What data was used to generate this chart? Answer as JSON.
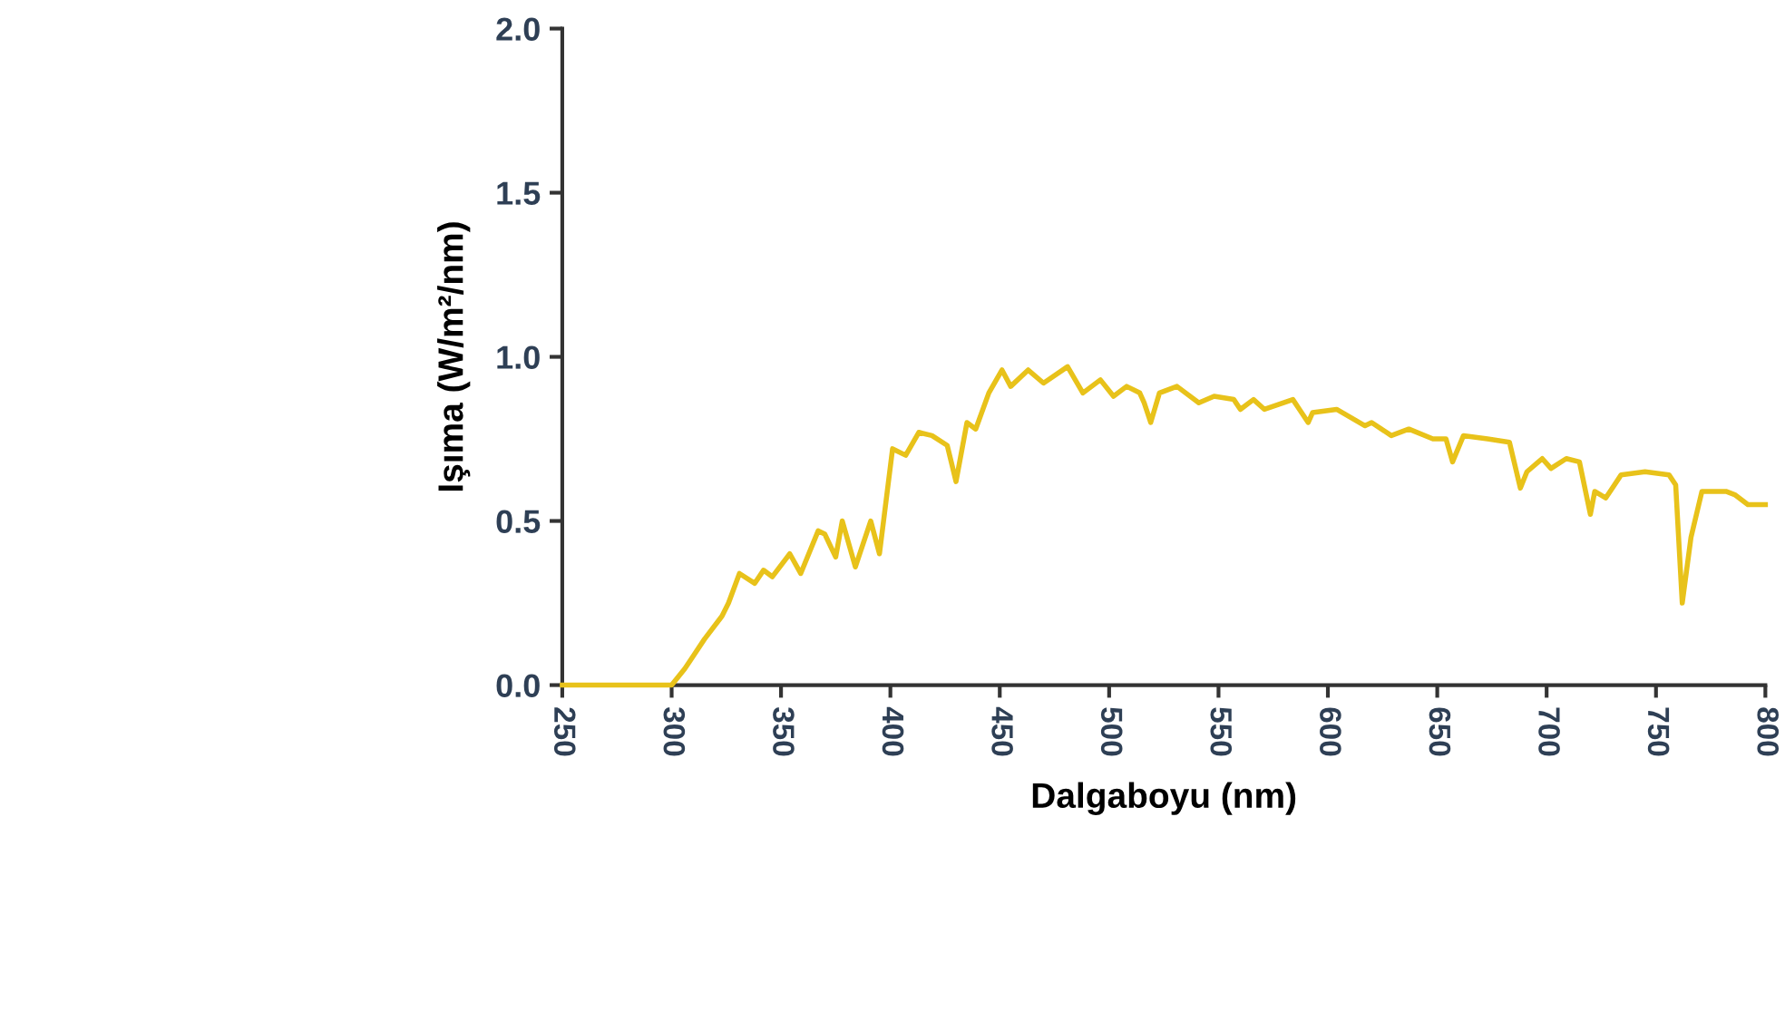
{
  "chart_data": {
    "type": "line",
    "xlabel": "Dalgaboyu (nm)",
    "ylabel": "Işıma (W/m²/nm)",
    "xlim": [
      250,
      800
    ],
    "ylim": [
      0,
      2.0
    ],
    "xticks": [
      250,
      300,
      350,
      400,
      450,
      500,
      550,
      600,
      650,
      700,
      750,
      800
    ],
    "yticks": [
      {
        "value": 0,
        "label": "0.0"
      },
      {
        "value": 0.5,
        "label": "0.5"
      },
      {
        "value": 1.0,
        "label": "1.0"
      },
      {
        "value": 1.5,
        "label": "1.5"
      },
      {
        "value": 2.0,
        "label": "2.0"
      }
    ],
    "grid": false,
    "marker": "none",
    "line_style": "solid",
    "series": [
      {
        "color": "#e8c21a",
        "x": [
          250,
          300,
          306,
          315,
          323,
          326,
          331,
          338,
          342,
          346,
          354,
          359,
          367,
          370,
          375,
          378,
          384,
          391,
          395,
          401,
          407,
          413,
          419,
          426,
          430,
          435,
          439,
          445,
          451,
          455,
          463,
          470,
          481,
          488,
          496,
          502,
          508,
          514,
          516,
          519,
          523,
          531,
          541,
          548,
          557,
          560,
          566,
          571,
          584,
          587,
          591,
          593,
          604,
          617,
          620,
          629,
          637,
          648,
          654,
          657,
          662,
          673,
          683,
          688,
          691,
          698,
          702,
          709,
          715,
          720,
          722,
          727,
          734,
          745,
          756,
          759,
          762,
          766,
          771,
          782,
          786,
          792,
          800
        ],
        "values": [
          0,
          0,
          0.05,
          0.14,
          0.21,
          0.25,
          0.34,
          0.31,
          0.35,
          0.33,
          0.4,
          0.34,
          0.47,
          0.46,
          0.39,
          0.5,
          0.36,
          0.5,
          0.4,
          0.72,
          0.7,
          0.77,
          0.76,
          0.73,
          0.62,
          0.8,
          0.78,
          0.89,
          0.96,
          0.91,
          0.96,
          0.92,
          0.97,
          0.89,
          0.93,
          0.88,
          0.91,
          0.89,
          0.86,
          0.8,
          0.89,
          0.91,
          0.86,
          0.88,
          0.87,
          0.84,
          0.87,
          0.84,
          0.87,
          0.84,
          0.8,
          0.83,
          0.84,
          0.79,
          0.8,
          0.76,
          0.78,
          0.75,
          0.75,
          0.68,
          0.76,
          0.75,
          0.74,
          0.6,
          0.65,
          0.69,
          0.66,
          0.69,
          0.68,
          0.52,
          0.59,
          0.57,
          0.64,
          0.65,
          0.64,
          0.61,
          0.25,
          0.45,
          0.59,
          0.59,
          0.58,
          0.55,
          0.55
        ]
      }
    ]
  }
}
